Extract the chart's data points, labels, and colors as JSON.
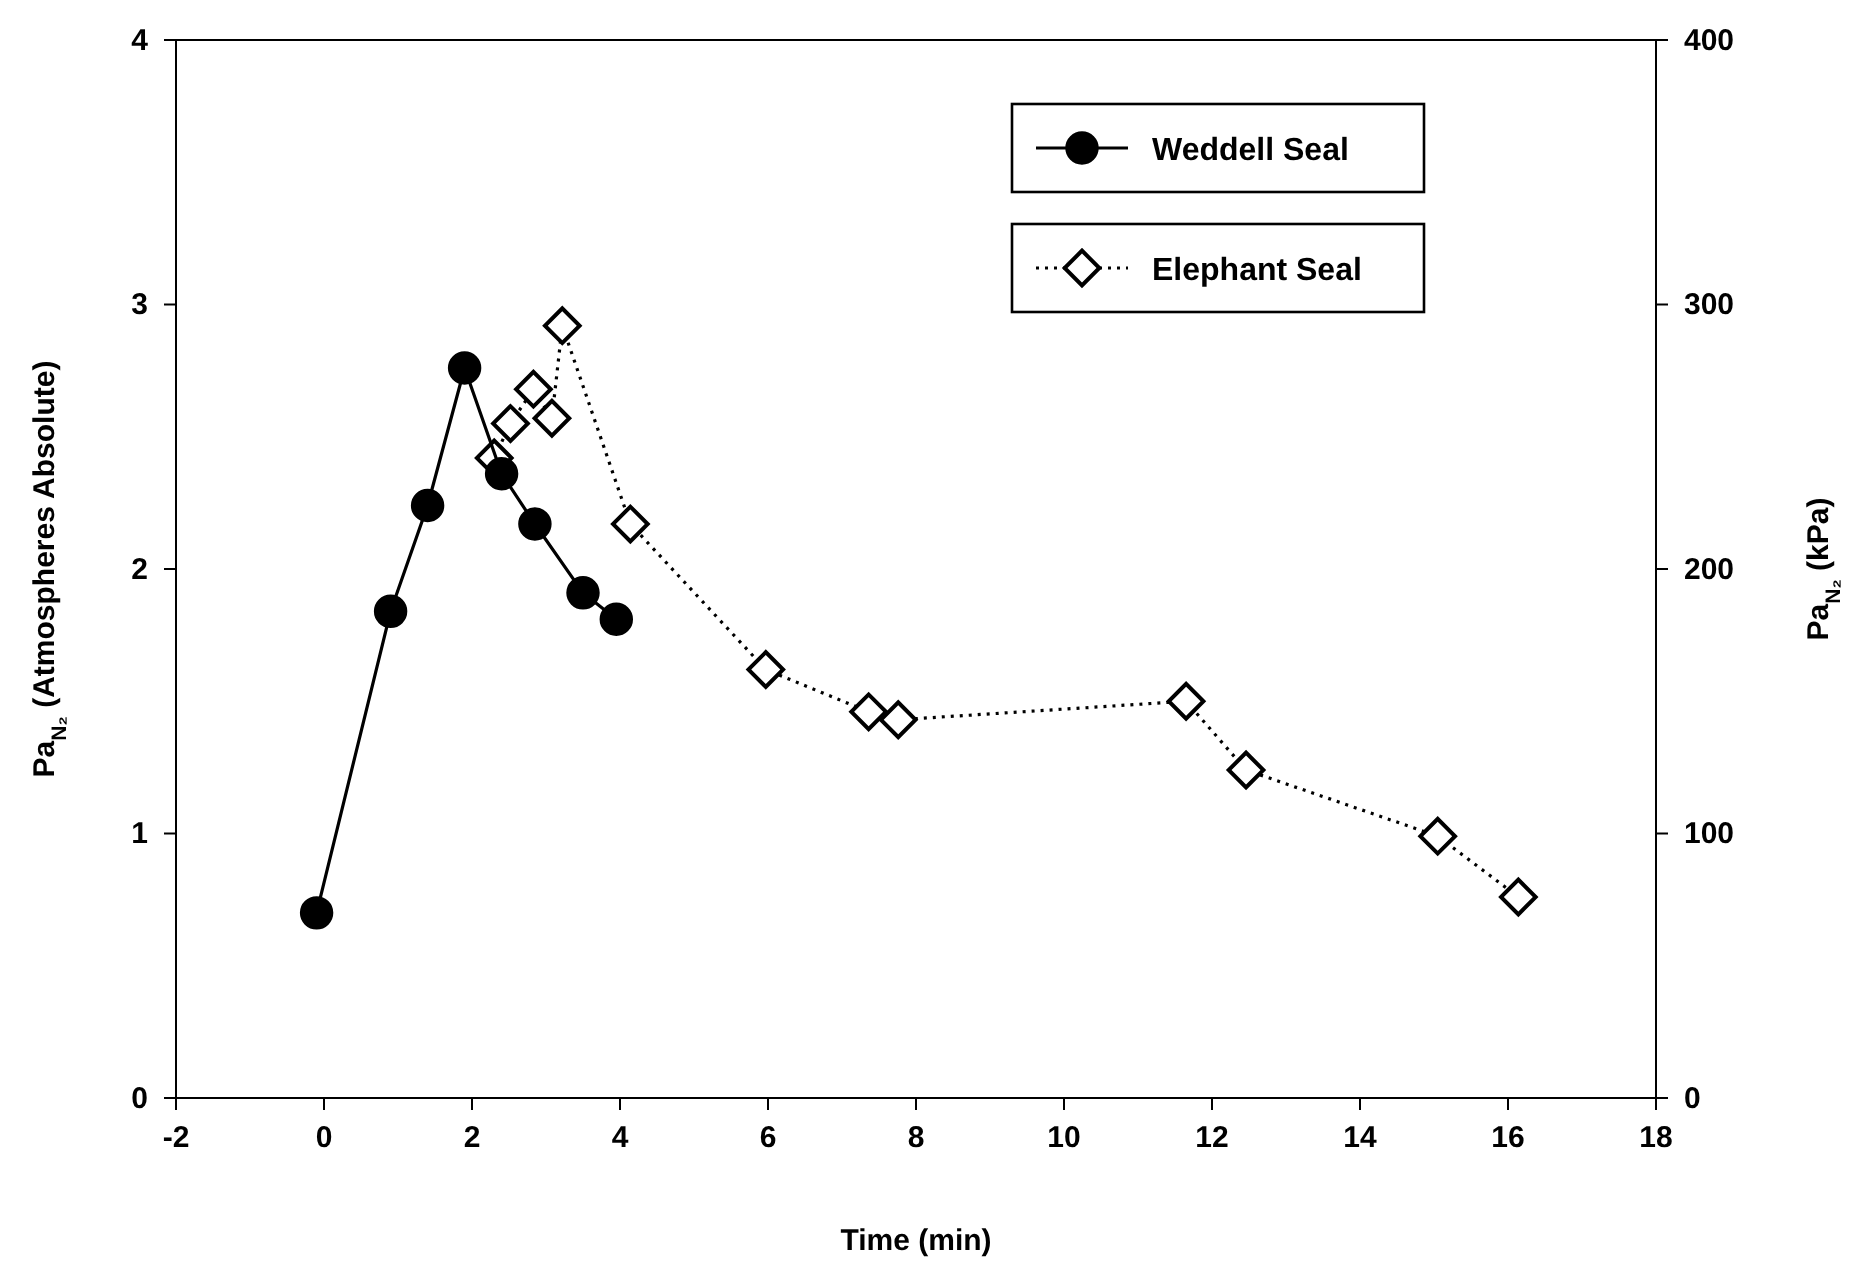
{
  "chart_data": {
    "type": "line",
    "xlabel": "Time (min)",
    "ylabel": "Pa$_{N₂}$ (Atmospheres Absolute)",
    "y2label": "Pa$_{N₂}$ (kPa)",
    "xlim": [
      -2,
      18
    ],
    "xticks": [
      -2,
      0,
      2,
      4,
      6,
      8,
      10,
      12,
      14,
      16,
      18
    ],
    "ylim": [
      0,
      4
    ],
    "yticks": [
      0,
      1,
      2,
      3,
      4
    ],
    "y2lim": [
      0,
      400
    ],
    "y2ticks": [
      0,
      100,
      200,
      300,
      400
    ],
    "legend": "top right",
    "grid": false,
    "series": [
      {
        "name": "Weddell Seal",
        "color": "#000000",
        "marker": "circle",
        "line_style": "solid",
        "x": [
          -0.1,
          0.9,
          1.4,
          1.9,
          2.4,
          2.85,
          3.5,
          3.95
        ],
        "values": [
          0.7,
          1.84,
          2.24,
          2.76,
          2.36,
          2.17,
          1.91,
          1.81
        ]
      },
      {
        "name": "Elephant Seal",
        "color": "#000000",
        "marker": "diamond",
        "line_style": "dotted",
        "x": [
          2.3,
          2.52,
          2.83,
          3.08,
          3.22,
          4.14,
          5.97,
          7.36,
          7.76,
          11.65,
          12.46,
          15.05,
          16.14
        ],
        "values": [
          2.42,
          2.55,
          2.68,
          2.57,
          2.92,
          2.17,
          1.62,
          1.46,
          1.43,
          1.5,
          1.24,
          0.99,
          0.76
        ]
      }
    ]
  }
}
